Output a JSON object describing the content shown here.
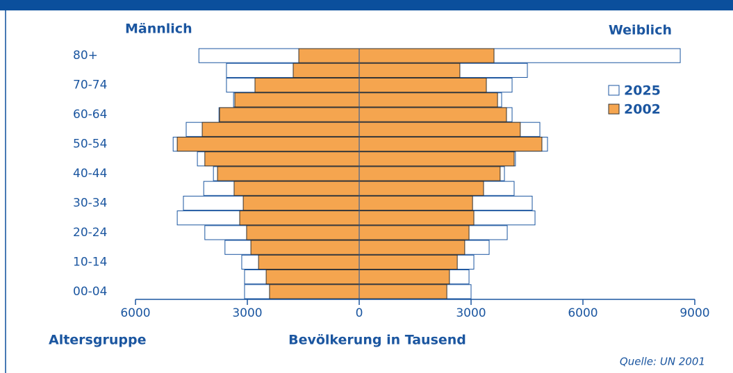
{
  "chart_data": {
    "type": "population-pyramid",
    "left_label": "Männlich",
    "right_label": "Weiblich",
    "y_axis_label": "Altersgruppe",
    "x_axis_label": "Bevölkerung in Tausend",
    "source": "Quelle: UN 2001",
    "categories": [
      "00-04",
      null,
      "10-14",
      null,
      "20-24",
      null,
      "30-34",
      null,
      "40-44",
      null,
      "50-54",
      null,
      "60-64",
      null,
      "70-74",
      null,
      "80+"
    ],
    "series": [
      {
        "name": "2025",
        "color": "#ffffff",
        "male": [
          3075,
          3075,
          3150,
          3600,
          4140,
          4880,
          4715,
          4170,
          3910,
          4340,
          4990,
          4640,
          3760,
          3370,
          3560,
          3560,
          4300
        ],
        "female": [
          3000,
          2945,
          3075,
          3485,
          3970,
          4715,
          4640,
          4155,
          3895,
          4190,
          5050,
          4845,
          4100,
          3820,
          4100,
          4510,
          8610
        ]
      },
      {
        "name": "2002",
        "color": "#f5a54f",
        "male": [
          2405,
          2495,
          2700,
          2905,
          3020,
          3205,
          3110,
          3355,
          3800,
          4140,
          4880,
          4210,
          3745,
          3335,
          2795,
          1770,
          1620
        ],
        "female": [
          2350,
          2420,
          2630,
          2830,
          2945,
          3075,
          3040,
          3335,
          3780,
          4155,
          4900,
          4320,
          3950,
          3710,
          3410,
          2700,
          3615
        ]
      }
    ],
    "xlim": [
      -6000,
      9000
    ],
    "xticks": [
      {
        "value": -6000,
        "label": "6000"
      },
      {
        "value": -3000,
        "label": "3000"
      },
      0,
      3000,
      6000,
      9000
    ],
    "legend": "upper right"
  }
}
